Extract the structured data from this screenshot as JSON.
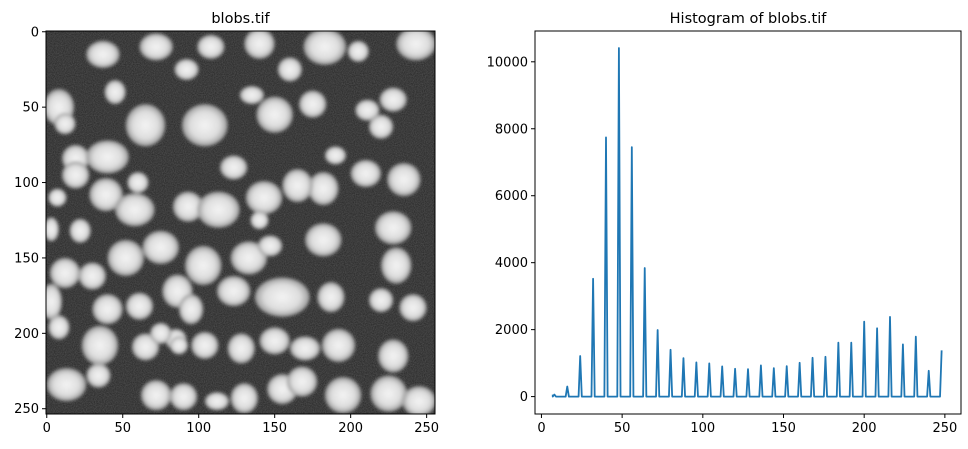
{
  "chart_data": [
    {
      "type": "image",
      "title": "blobs.tif",
      "xticks": [
        0,
        50,
        100,
        150,
        200,
        250
      ],
      "yticks": [
        0,
        50,
        100,
        150,
        200,
        250
      ],
      "xlim": [
        -0.5,
        255.5
      ],
      "ylim": [
        253.5,
        -0.5
      ],
      "colormap": "gray",
      "blobs": [
        [
          8,
          50,
          10,
          12
        ],
        [
          37,
          15,
          11,
          9
        ],
        [
          72,
          10,
          11,
          9
        ],
        [
          108,
          10,
          9,
          8
        ],
        [
          140,
          8,
          10,
          10
        ],
        [
          183,
          10,
          14,
          12
        ],
        [
          205,
          13,
          7,
          7
        ],
        [
          243,
          8,
          13,
          11
        ],
        [
          12,
          61,
          7,
          7
        ],
        [
          19,
          84,
          9,
          9
        ],
        [
          40,
          83,
          14,
          11
        ],
        [
          65,
          62,
          13,
          14
        ],
        [
          104,
          62,
          15,
          14
        ],
        [
          135,
          42,
          8,
          6
        ],
        [
          150,
          55,
          12,
          12
        ],
        [
          175,
          48,
          9,
          9
        ],
        [
          211,
          52,
          8,
          7
        ],
        [
          228,
          45,
          9,
          8
        ],
        [
          19,
          95,
          9,
          9
        ],
        [
          39,
          108,
          11,
          11
        ],
        [
          58,
          118,
          13,
          11
        ],
        [
          93,
          116,
          10,
          10
        ],
        [
          113,
          118,
          14,
          12
        ],
        [
          143,
          110,
          12,
          11
        ],
        [
          182,
          104,
          10,
          11
        ],
        [
          210,
          94,
          10,
          9
        ],
        [
          235,
          98,
          11,
          11
        ],
        [
          3,
          131,
          5,
          8
        ],
        [
          22,
          132,
          7,
          8
        ],
        [
          52,
          150,
          12,
          12
        ],
        [
          75,
          143,
          12,
          11
        ],
        [
          103,
          155,
          12,
          13
        ],
        [
          133,
          150,
          12,
          11
        ],
        [
          147,
          142,
          8,
          7
        ],
        [
          182,
          138,
          12,
          11
        ],
        [
          228,
          130,
          12,
          11
        ],
        [
          3,
          179,
          7,
          12
        ],
        [
          40,
          184,
          10,
          10
        ],
        [
          61,
          182,
          9,
          9
        ],
        [
          86,
          172,
          10,
          11
        ],
        [
          123,
          172,
          11,
          10
        ],
        [
          155,
          176,
          18,
          13
        ],
        [
          187,
          176,
          9,
          10
        ],
        [
          220,
          178,
          8,
          8
        ],
        [
          241,
          183,
          9,
          9
        ],
        [
          8,
          196,
          7,
          8
        ],
        [
          35,
          208,
          12,
          13
        ],
        [
          65,
          209,
          9,
          9
        ],
        [
          85,
          204,
          7,
          7
        ],
        [
          104,
          208,
          9,
          9
        ],
        [
          128,
          210,
          9,
          10
        ],
        [
          150,
          205,
          10,
          9
        ],
        [
          170,
          210,
          10,
          8
        ],
        [
          192,
          208,
          11,
          11
        ],
        [
          228,
          215,
          10,
          11
        ],
        [
          13,
          234,
          13,
          11
        ],
        [
          34,
          228,
          8,
          8
        ],
        [
          72,
          241,
          10,
          10
        ],
        [
          90,
          242,
          9,
          9
        ],
        [
          130,
          243,
          9,
          10
        ],
        [
          155,
          237,
          10,
          10
        ],
        [
          168,
          232,
          10,
          10
        ],
        [
          195,
          241,
          12,
          12
        ],
        [
          225,
          240,
          12,
          12
        ],
        [
          245,
          245,
          11,
          10
        ],
        [
          12,
          160,
          10,
          10
        ],
        [
          30,
          162,
          9,
          9
        ],
        [
          95,
          184,
          8,
          10
        ],
        [
          165,
          102,
          10,
          11
        ],
        [
          123,
          90,
          9,
          8
        ],
        [
          220,
          63,
          8,
          8
        ],
        [
          45,
          40,
          7,
          8
        ],
        [
          92,
          25,
          8,
          7
        ],
        [
          160,
          25,
          8,
          8
        ],
        [
          230,
          155,
          10,
          12
        ],
        [
          87,
          208,
          6,
          6
        ],
        [
          112,
          245,
          8,
          6
        ],
        [
          75,
          200,
          7,
          7
        ],
        [
          60,
          100,
          7,
          7
        ],
        [
          7,
          110,
          6,
          6
        ],
        [
          190,
          82,
          7,
          6
        ],
        [
          140,
          125,
          6,
          6
        ]
      ]
    },
    {
      "type": "line",
      "title": "Histogram of blobs.tif",
      "xticks": [
        0,
        50,
        100,
        150,
        200,
        250
      ],
      "yticks": [
        0,
        2000,
        4000,
        6000,
        8000,
        10000
      ],
      "xlim": [
        -4,
        260
      ],
      "ylim": [
        -520,
        10920
      ],
      "color": "#1f77b4",
      "peaks": [
        [
          8,
          60
        ],
        [
          16,
          300
        ],
        [
          24,
          1210
        ],
        [
          32,
          3520
        ],
        [
          40,
          7740
        ],
        [
          48,
          10410
        ],
        [
          56,
          7450
        ],
        [
          64,
          3840
        ],
        [
          72,
          1990
        ],
        [
          80,
          1400
        ],
        [
          88,
          1150
        ],
        [
          96,
          1020
        ],
        [
          104,
          990
        ],
        [
          112,
          900
        ],
        [
          120,
          830
        ],
        [
          128,
          820
        ],
        [
          136,
          930
        ],
        [
          144,
          850
        ],
        [
          152,
          910
        ],
        [
          160,
          1010
        ],
        [
          168,
          1160
        ],
        [
          176,
          1190
        ],
        [
          184,
          1610
        ],
        [
          192,
          1610
        ],
        [
          200,
          2240
        ],
        [
          208,
          2040
        ],
        [
          216,
          2380
        ],
        [
          224,
          1560
        ],
        [
          232,
          1790
        ],
        [
          240,
          770
        ],
        [
          248,
          1380
        ]
      ]
    }
  ]
}
